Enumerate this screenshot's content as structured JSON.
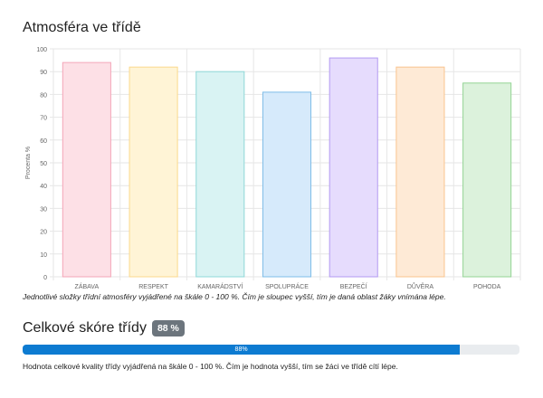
{
  "page": {
    "title": "Atmosféra ve třídě",
    "caption": "Jednotlivé složky třídní atmosféry vyjádřené na škále 0 - 100 %. Čím je sloupec vyšší, tím je daná oblast žáky vnímána lépe."
  },
  "score": {
    "title": "Celkové skóre třídy",
    "badge": "88 %",
    "value": 88,
    "bar_label": "88%",
    "note": "Hodnota celkové kvality třídy vyjádřená na škále 0 - 100 %. Čím je hodnota vyšší, tím se žáci ve třídě cítí lépe.",
    "bar_color": "#0d7bd1"
  },
  "chart_data": {
    "type": "bar",
    "categories": [
      "ZÁBAVA",
      "RESPEKT",
      "KAMARÁDSTVÍ",
      "SPOLUPRÁCE",
      "BEZPEČÍ",
      "DŮVĚRA",
      "POHODA"
    ],
    "values": [
      94,
      92,
      90,
      81,
      96,
      92,
      85
    ],
    "ylabel": "Procenta %",
    "ylim": [
      0,
      100
    ],
    "yticks": [
      0,
      10,
      20,
      30,
      40,
      50,
      60,
      70,
      80,
      90,
      100
    ],
    "grid": true,
    "colors": [
      {
        "fill": "#fde0e6",
        "stroke": "#f4a6b8"
      },
      {
        "fill": "#fff4d6",
        "stroke": "#fbd98c"
      },
      {
        "fill": "#d9f3f3",
        "stroke": "#8fd8d8"
      },
      {
        "fill": "#d6eafb",
        "stroke": "#7fbde8"
      },
      {
        "fill": "#e6dcfd",
        "stroke": "#b39af2"
      },
      {
        "fill": "#feead6",
        "stroke": "#f9c48e"
      },
      {
        "fill": "#dcf2dc",
        "stroke": "#93d494"
      }
    ]
  }
}
